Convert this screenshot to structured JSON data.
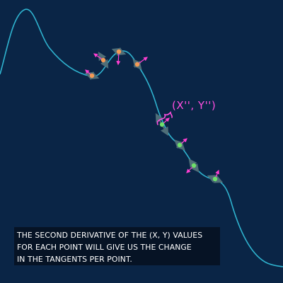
{
  "colors": {
    "background": "#0a2546",
    "curve": "#2fb3cf",
    "orange_point": "#f39a55",
    "green_point": "#6ee06a",
    "normal_arrow": "#ff3fd2",
    "tangent_arrow": "#4f6e78",
    "label": "#ff4fe0",
    "caption_text": "#ffffff",
    "caption_bg": "#061020"
  },
  "label": {
    "text": "(X'', Y'')"
  },
  "caption": {
    "lines": [
      "THE SECOND DERIVATIVE OF THE (X, Y) VALUES",
      "FOR EACH POINT WILL GIVE US THE CHANGE",
      "IN THE TANGENTS PER POINT."
    ]
  },
  "points": {
    "orange_group": [
      "orange-point",
      "orange-point",
      "orange-point",
      "orange-point"
    ],
    "green_group": [
      "green-point",
      "green-point",
      "green-point",
      "green-point"
    ]
  },
  "icons": {
    "normal": "arrow-icon",
    "tangent": "arrow-icon",
    "brace": "brace-icon"
  }
}
